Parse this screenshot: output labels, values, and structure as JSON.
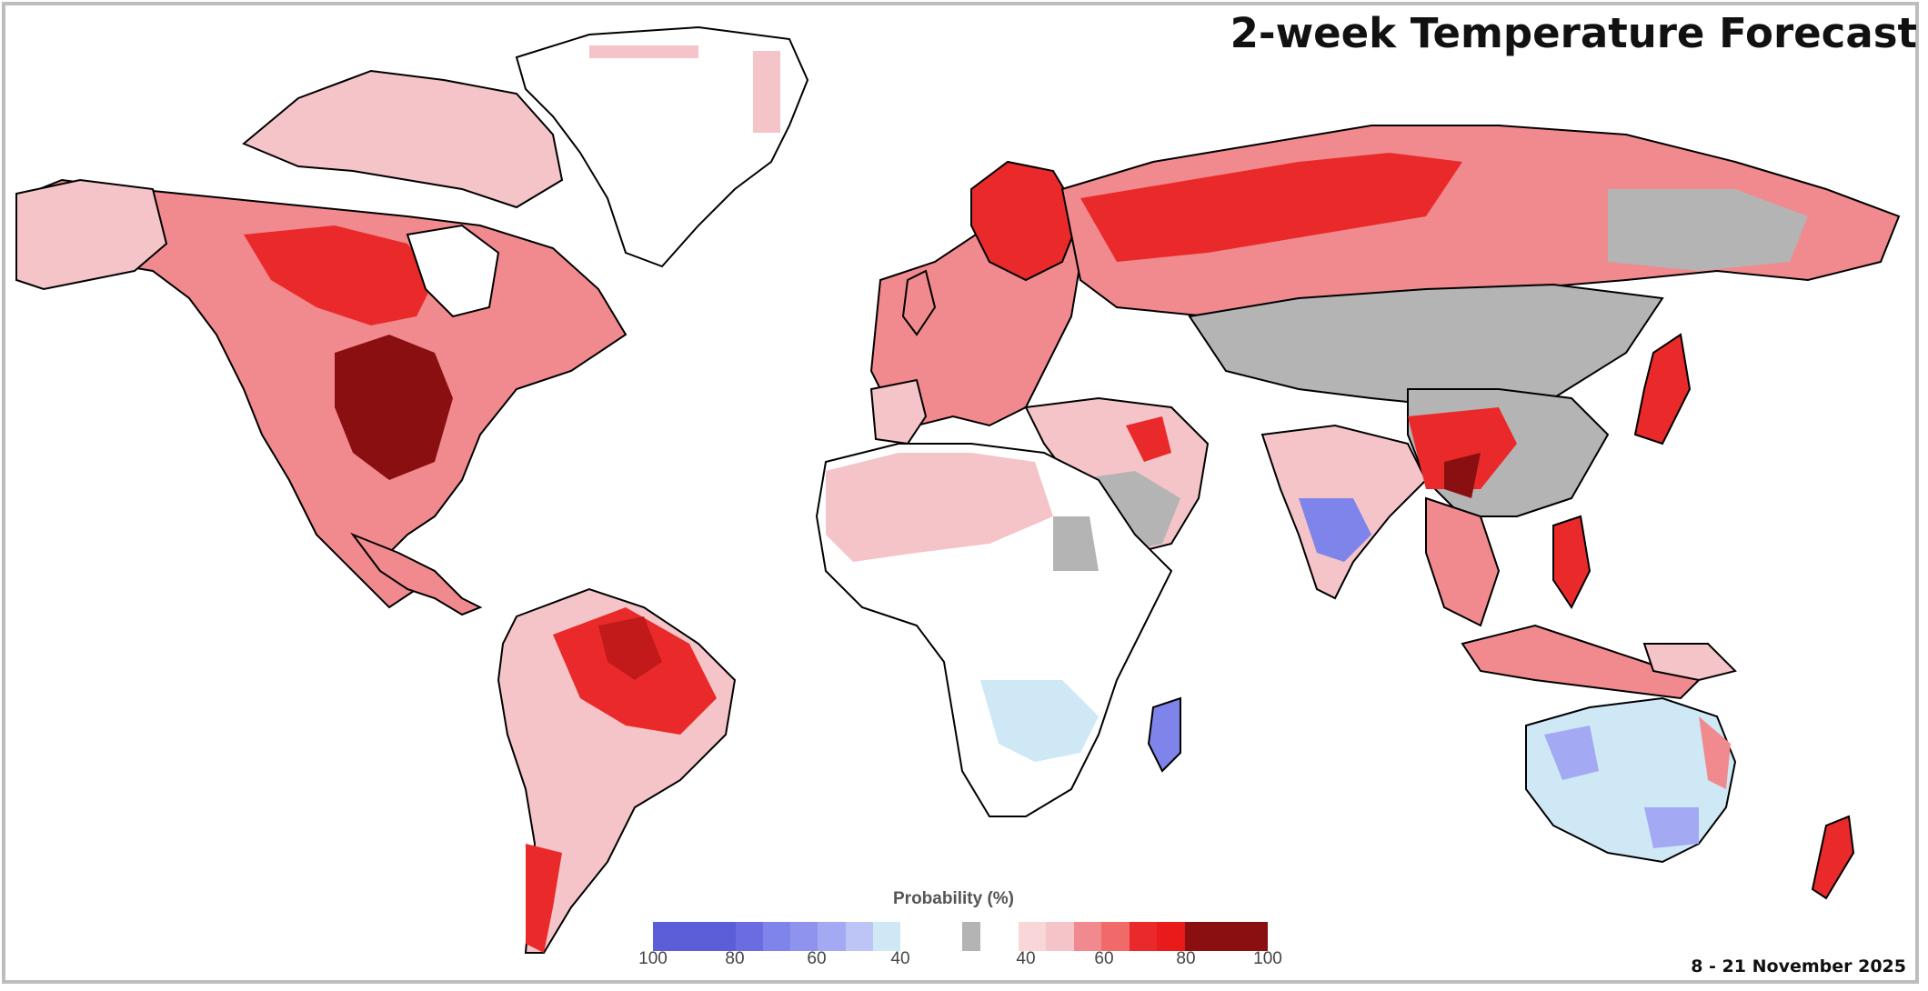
{
  "map": {
    "title": "2-week Temperature Forecast",
    "date_range": "8 - 21 November 2025",
    "colors": {
      "above_40": "#f4c4c8",
      "above_50": "#f08a8e",
      "above_60": "#ea2a2a",
      "above_70": "#c21a1a",
      "above_80": "#8a0f10",
      "below_40": "#cfe8f6",
      "below_50": "#a3a9f2",
      "below_60": "#7f84ea",
      "below_80": "#5c5ed8",
      "near_normal": "#b4b4b4",
      "coastline": "#000000"
    },
    "regions": [
      {
        "name": "North America",
        "category": "Above normal"
      },
      {
        "name": "Central United States",
        "category": "Above normal"
      },
      {
        "name": "South America",
        "category": "Above normal"
      },
      {
        "name": "Europe",
        "category": "Above normal"
      },
      {
        "name": "Russia",
        "category": "Above normal"
      },
      {
        "name": "Central Asia",
        "category": "Near normal"
      },
      {
        "name": "Arabian Peninsula",
        "category": "Near normal"
      },
      {
        "name": "Southern India",
        "category": "Below normal"
      },
      {
        "name": "Southern Africa",
        "category": "Below normal"
      },
      {
        "name": "Madagascar",
        "category": "Below normal"
      },
      {
        "name": "Australia",
        "category": "Below normal"
      },
      {
        "name": "Southeast Asia",
        "category": "Above normal"
      },
      {
        "name": "Southern China",
        "category": "Above normal"
      },
      {
        "name": "Japan",
        "category": "Above normal"
      },
      {
        "name": "New Zealand",
        "category": "Above normal"
      }
    ]
  },
  "legend": {
    "title": "Probability (%)",
    "below_colors": [
      "#5c5ed8",
      "#5c5ed8",
      "#5c5ed8",
      "#6a6ce0",
      "#7f84ea",
      "#8f93ee",
      "#a3a9f2",
      "#bcc5f6",
      "#cfe8f6"
    ],
    "normal_colors": [
      "#ffffff",
      "#b4b4b4",
      "#ffffff"
    ],
    "above_colors": [
      "#f9d6d8",
      "#f4c4c8",
      "#f08a8e",
      "#f06a6a",
      "#ea2a2a",
      "#e81a1a",
      "#8a0f10",
      "#8a0f10",
      "#8a0f10"
    ],
    "below_ticks": [
      "100",
      "80",
      "60",
      "40"
    ],
    "above_ticks": [
      "40",
      "60",
      "80",
      "100"
    ]
  }
}
